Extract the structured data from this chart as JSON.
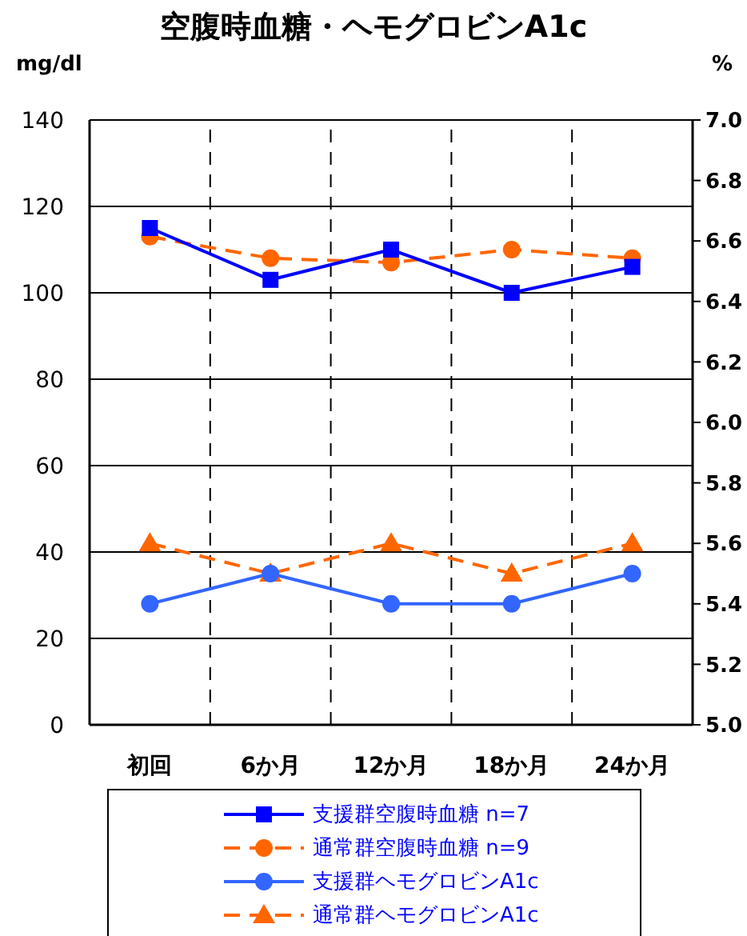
{
  "chart_data": {
    "type": "line",
    "title": "空腹時血糖・ヘモグロビンA1c",
    "ylabel": "mg/dl",
    "y2label": "%",
    "categories": [
      "初回",
      "6か月",
      "12か月",
      "18か月",
      "24か月"
    ],
    "series": [
      {
        "name": "支援群空腹時血糖 n=7",
        "color": "#0000ff",
        "values": [
          115,
          103,
          110,
          100,
          106
        ],
        "marker": "square",
        "line_style": "solid"
      },
      {
        "name": "通常群空腹時血糖 n=9",
        "color": "#ff6600",
        "values": [
          113,
          108,
          107,
          110,
          108
        ],
        "marker": "circle",
        "line_style": "dashed"
      },
      {
        "name": "支援群ヘモグロビンA1c",
        "color": "#3366ff",
        "values": [
          5.4,
          5.5,
          5.4,
          5.4,
          5.5
        ],
        "axis": "y2",
        "marker": "circle",
        "line_style": "solid"
      },
      {
        "name": "通常群ヘモグロビンA1c",
        "color": "#ff6600",
        "values": [
          5.6,
          5.5,
          5.6,
          5.5,
          5.6
        ],
        "axis": "y2",
        "marker": "triangle",
        "line_style": "dashed"
      }
    ],
    "ylim": [
      0,
      140
    ],
    "yticks": [
      0,
      20,
      40,
      60,
      80,
      100,
      120,
      140
    ],
    "y2lim": [
      5,
      7
    ],
    "y2ticks": [
      {
        "value": 5,
        "label": "5.0"
      },
      {
        "value": 5.2,
        "label": "5.2"
      },
      {
        "value": 5.4,
        "label": "5.4"
      },
      {
        "value": 5.6,
        "label": "5.6"
      },
      {
        "value": 5.8,
        "label": "5.8"
      },
      {
        "value": 6,
        "label": "6.0"
      },
      {
        "value": 6.2,
        "label": "6.2"
      },
      {
        "value": 6.4,
        "label": "6.4"
      },
      {
        "value": 6.6,
        "label": "6.6"
      },
      {
        "value": 6.8,
        "label": "6.8"
      },
      {
        "value": 7,
        "label": "7.0"
      }
    ],
    "grid": true,
    "legend": "bottom"
  }
}
